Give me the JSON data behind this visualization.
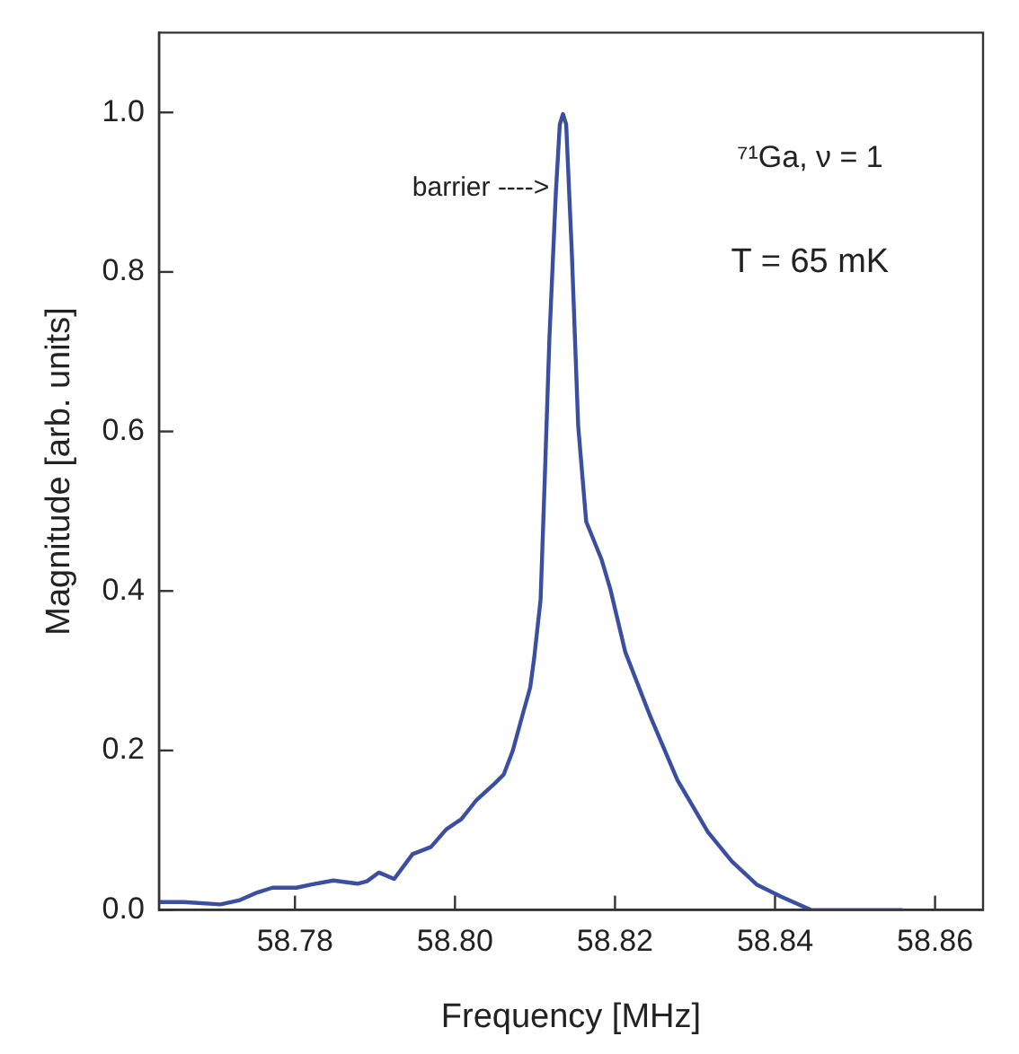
{
  "chart_data": {
    "type": "line",
    "xlabel": "Frequency [MHz]",
    "ylabel": "Magnitude [arb. units]",
    "xlim": [
      58.763,
      58.866
    ],
    "ylim": [
      0,
      1.1
    ],
    "xticks": [
      58.78,
      {
        "value": 58.8,
        "label": "58.80"
      },
      58.82,
      58.84,
      58.86
    ],
    "yticks": [
      {
        "value": 0,
        "label": "0.0"
      },
      {
        "value": 0.2,
        "label": "0.2"
      },
      {
        "value": 0.4,
        "label": "0.4"
      },
      {
        "value": 0.6,
        "label": "0.6"
      },
      {
        "value": 0.8,
        "label": "0.8"
      },
      {
        "value": 1,
        "label": "1.0"
      }
    ],
    "grid": false,
    "legend": false,
    "marker": "none",
    "line_style": "solid",
    "annotations": [
      {
        "text": "barrier ---->",
        "x": 58.8118,
        "y": 0.905
      },
      "⁷¹Ga, ν = 1",
      "T = 65 mK"
    ],
    "series": [
      {
        "color": "#3b4fa0",
        "x": [
          58.7631,
          58.7661,
          58.7707,
          58.773,
          58.7753,
          58.7772,
          58.7802,
          58.7821,
          58.7848,
          58.7878,
          58.789,
          58.7905,
          58.7924,
          58.7947,
          58.797,
          58.7989,
          58.8008,
          58.8027,
          58.805,
          58.8061,
          58.8072,
          58.8084,
          58.8094,
          58.8099,
          58.8107,
          58.8112,
          58.8118,
          58.8126,
          58.8131,
          58.8135,
          58.8139,
          58.8146,
          58.8154,
          58.8164,
          58.8183,
          58.8194,
          58.8213,
          58.8244,
          58.8278,
          58.8316,
          58.8346,
          58.8377,
          58.8407,
          58.8445,
          58.849,
          58.8559
        ],
        "values": [
          0.01,
          0.01,
          0.007,
          0.012,
          0.022,
          0.028,
          0.028,
          0.032,
          0.037,
          0.033,
          0.036,
          0.047,
          0.039,
          0.07,
          0.079,
          0.101,
          0.114,
          0.138,
          0.159,
          0.17,
          0.199,
          0.243,
          0.279,
          0.316,
          0.389,
          0.534,
          0.716,
          0.898,
          0.985,
          0.998,
          0.985,
          0.825,
          0.607,
          0.487,
          0.44,
          0.403,
          0.323,
          0.243,
          0.163,
          0.098,
          0.061,
          0.032,
          0.017,
          0,
          0,
          0
        ]
      }
    ]
  }
}
